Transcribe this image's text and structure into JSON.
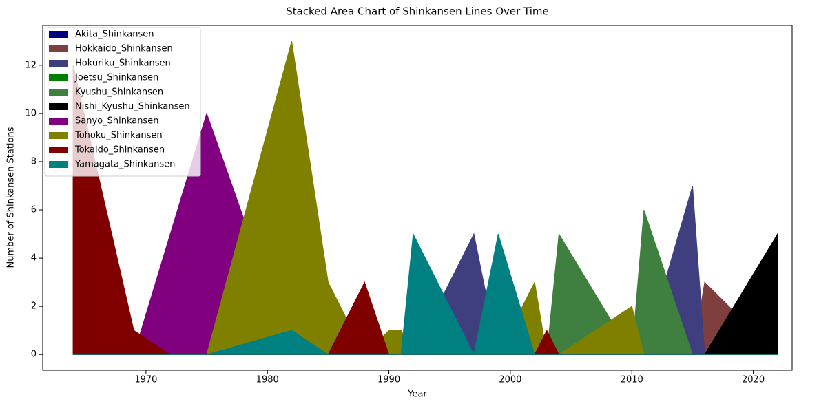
{
  "chart_data": {
    "type": "area",
    "title": "Stacked Area Chart of Shinkansen Lines Over Time",
    "x_label": "Year",
    "y_label": "Number of Shinkansen Stations",
    "x": [
      1964,
      1969,
      1972,
      1975,
      1982,
      1985,
      1988,
      1990,
      1991,
      1992,
      1997,
      1999,
      2002,
      2003,
      2004,
      2010,
      2011,
      2015,
      2016,
      2022
    ],
    "series": [
      {
        "name": "Akita_Shinkansen",
        "color": "#000080",
        "values": [
          0,
          0,
          0,
          0,
          0,
          0,
          0,
          0,
          0,
          0,
          0,
          0,
          0,
          0,
          0,
          0,
          0,
          0,
          0,
          0
        ]
      },
      {
        "name": "Hokkaido_Shinkansen",
        "color": "#7f3f3f",
        "values": [
          0,
          0,
          0,
          0,
          0,
          0,
          0,
          0,
          0,
          0,
          0,
          0,
          0,
          0,
          0,
          0,
          0,
          0,
          3,
          0
        ]
      },
      {
        "name": "Hokuriku_Shinkansen",
        "color": "#3f3f7f",
        "values": [
          0,
          0,
          0,
          0,
          0,
          0,
          0,
          0,
          0,
          0,
          5,
          0,
          0,
          0,
          0,
          0,
          0,
          7,
          0,
          0
        ]
      },
      {
        "name": "Joetsu_Shinkansen",
        "color": "#008000",
        "values": [
          0,
          0,
          0,
          0,
          0,
          0,
          0,
          0,
          0,
          0,
          0,
          0,
          0,
          0,
          0,
          0,
          0,
          0,
          0,
          0
        ]
      },
      {
        "name": "Kyushu_Shinkansen",
        "color": "#3f7f3f",
        "values": [
          0,
          0,
          0,
          0,
          0,
          0,
          0,
          0,
          0,
          0,
          0,
          0,
          0,
          0,
          5,
          0,
          6,
          0,
          0,
          0
        ]
      },
      {
        "name": "Nishi_Kyushu_Shinkansen",
        "color": "#000000",
        "values": [
          0,
          0,
          0,
          0,
          0,
          0,
          0,
          0,
          0,
          0,
          0,
          0,
          0,
          0,
          0,
          0,
          0,
          0,
          0,
          5
        ]
      },
      {
        "name": "Sanyo_Shinkansen",
        "color": "#800080",
        "values": [
          0,
          0,
          5,
          10,
          0,
          0,
          0,
          0,
          0,
          0,
          0,
          0,
          0,
          0,
          0,
          0,
          0,
          0,
          0,
          0
        ]
      },
      {
        "name": "Tohoku_Shinkansen",
        "color": "#808000",
        "values": [
          0,
          0,
          0,
          0,
          13,
          3,
          0,
          1,
          1,
          0,
          0,
          0,
          3,
          0,
          0,
          2,
          0,
          0,
          0,
          0
        ]
      },
      {
        "name": "Tokaido_Shinkansen",
        "color": "#800000",
        "values": [
          12,
          1,
          0,
          0,
          0,
          0,
          3,
          0,
          0,
          0,
          0,
          0,
          0,
          1,
          0,
          0,
          0,
          0,
          0,
          0
        ]
      },
      {
        "name": "Yamagata_Shinkansen",
        "color": "#008080",
        "values": [
          0,
          0,
          0,
          0,
          1,
          0,
          0,
          0,
          0,
          5,
          0,
          5,
          0,
          0,
          0,
          0,
          0,
          0,
          0,
          0
        ]
      }
    ],
    "xlim": [
      1961.5,
      2023.2
    ],
    "xticks": [
      1970,
      1980,
      1990,
      2000,
      2010,
      2020
    ],
    "ylim": [
      -0.65,
      13.65
    ],
    "yticks": [
      0,
      2,
      4,
      6,
      8,
      10,
      12
    ],
    "legend": "upper left"
  }
}
